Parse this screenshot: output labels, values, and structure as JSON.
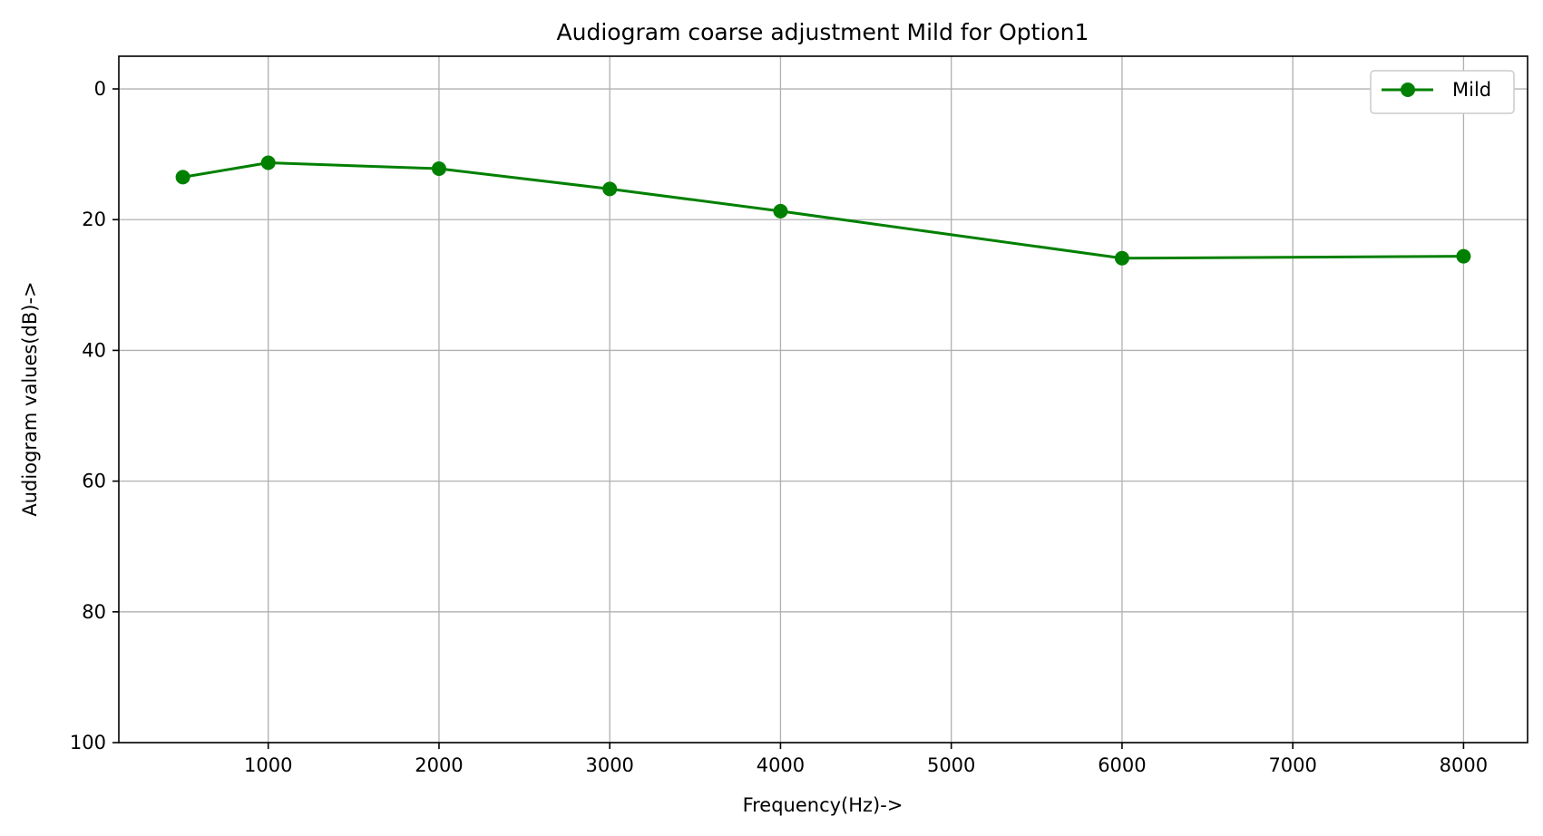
{
  "chart_data": {
    "type": "line",
    "title": "Audiogram coarse adjustment Mild for Option1",
    "xlabel": "Frequency(Hz)->",
    "ylabel": "Audiogram values(dB)->",
    "xlim": [
      125,
      8375
    ],
    "ylim": [
      -5,
      100
    ],
    "y_inverted": true,
    "xticks": [
      1000,
      2000,
      3000,
      4000,
      5000,
      6000,
      7000,
      8000
    ],
    "yticks": [
      0,
      20,
      40,
      60,
      80,
      100
    ],
    "grid": true,
    "legend_position": "top-right",
    "series": [
      {
        "name": "Mild",
        "color": "#008000",
        "marker": "circle",
        "x": [
          500,
          1000,
          2000,
          3000,
          4000,
          6000,
          8000
        ],
        "y": [
          13.5,
          11.3,
          12.2,
          15.3,
          18.7,
          25.9,
          25.6
        ]
      }
    ]
  }
}
